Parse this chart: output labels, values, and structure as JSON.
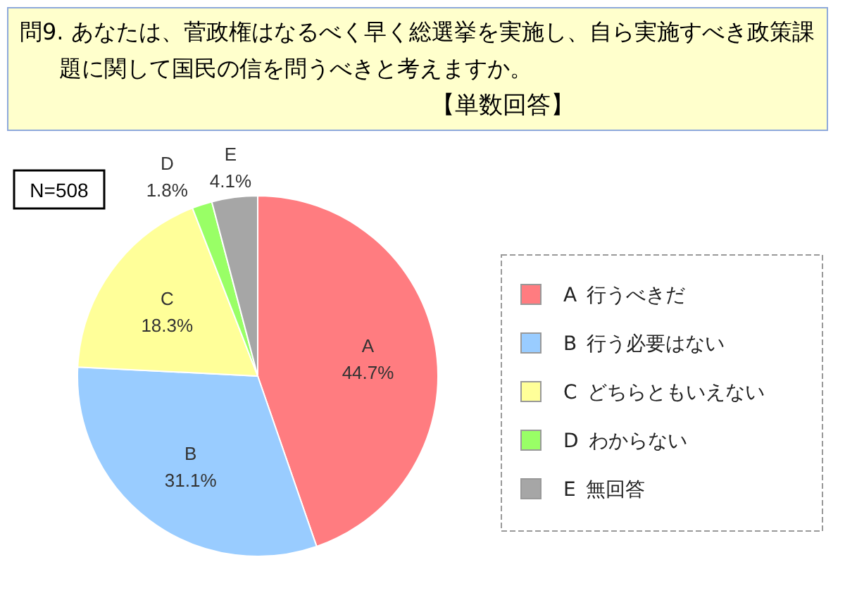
{
  "chart_data": {
    "type": "pie",
    "title": "問9. あなたは、菅政権はなるべく早く総選挙を実施し、自ら実施すべき政策課題に関して国民の信を問うべきと考えますか。",
    "subtitle": "【単数回答】",
    "annotations": [
      "N=508"
    ],
    "categories": [
      "A 行うべきだ",
      "B 行う必要はない",
      "C どちらともいえない",
      "D わからない",
      "E 無回答"
    ],
    "values": [
      44.7,
      31.1,
      18.3,
      1.8,
      4.1
    ],
    "colors": [
      "#ff7c80",
      "#99ccff",
      "#ffff99",
      "#99ff66",
      "#a6a6a6"
    ],
    "value_labels": [
      "A\n44.7%",
      "B\n31.1%",
      "C\n18.3%",
      "D\n1.8%",
      "E\n4.1%"
    ],
    "legend": "right"
  }
}
